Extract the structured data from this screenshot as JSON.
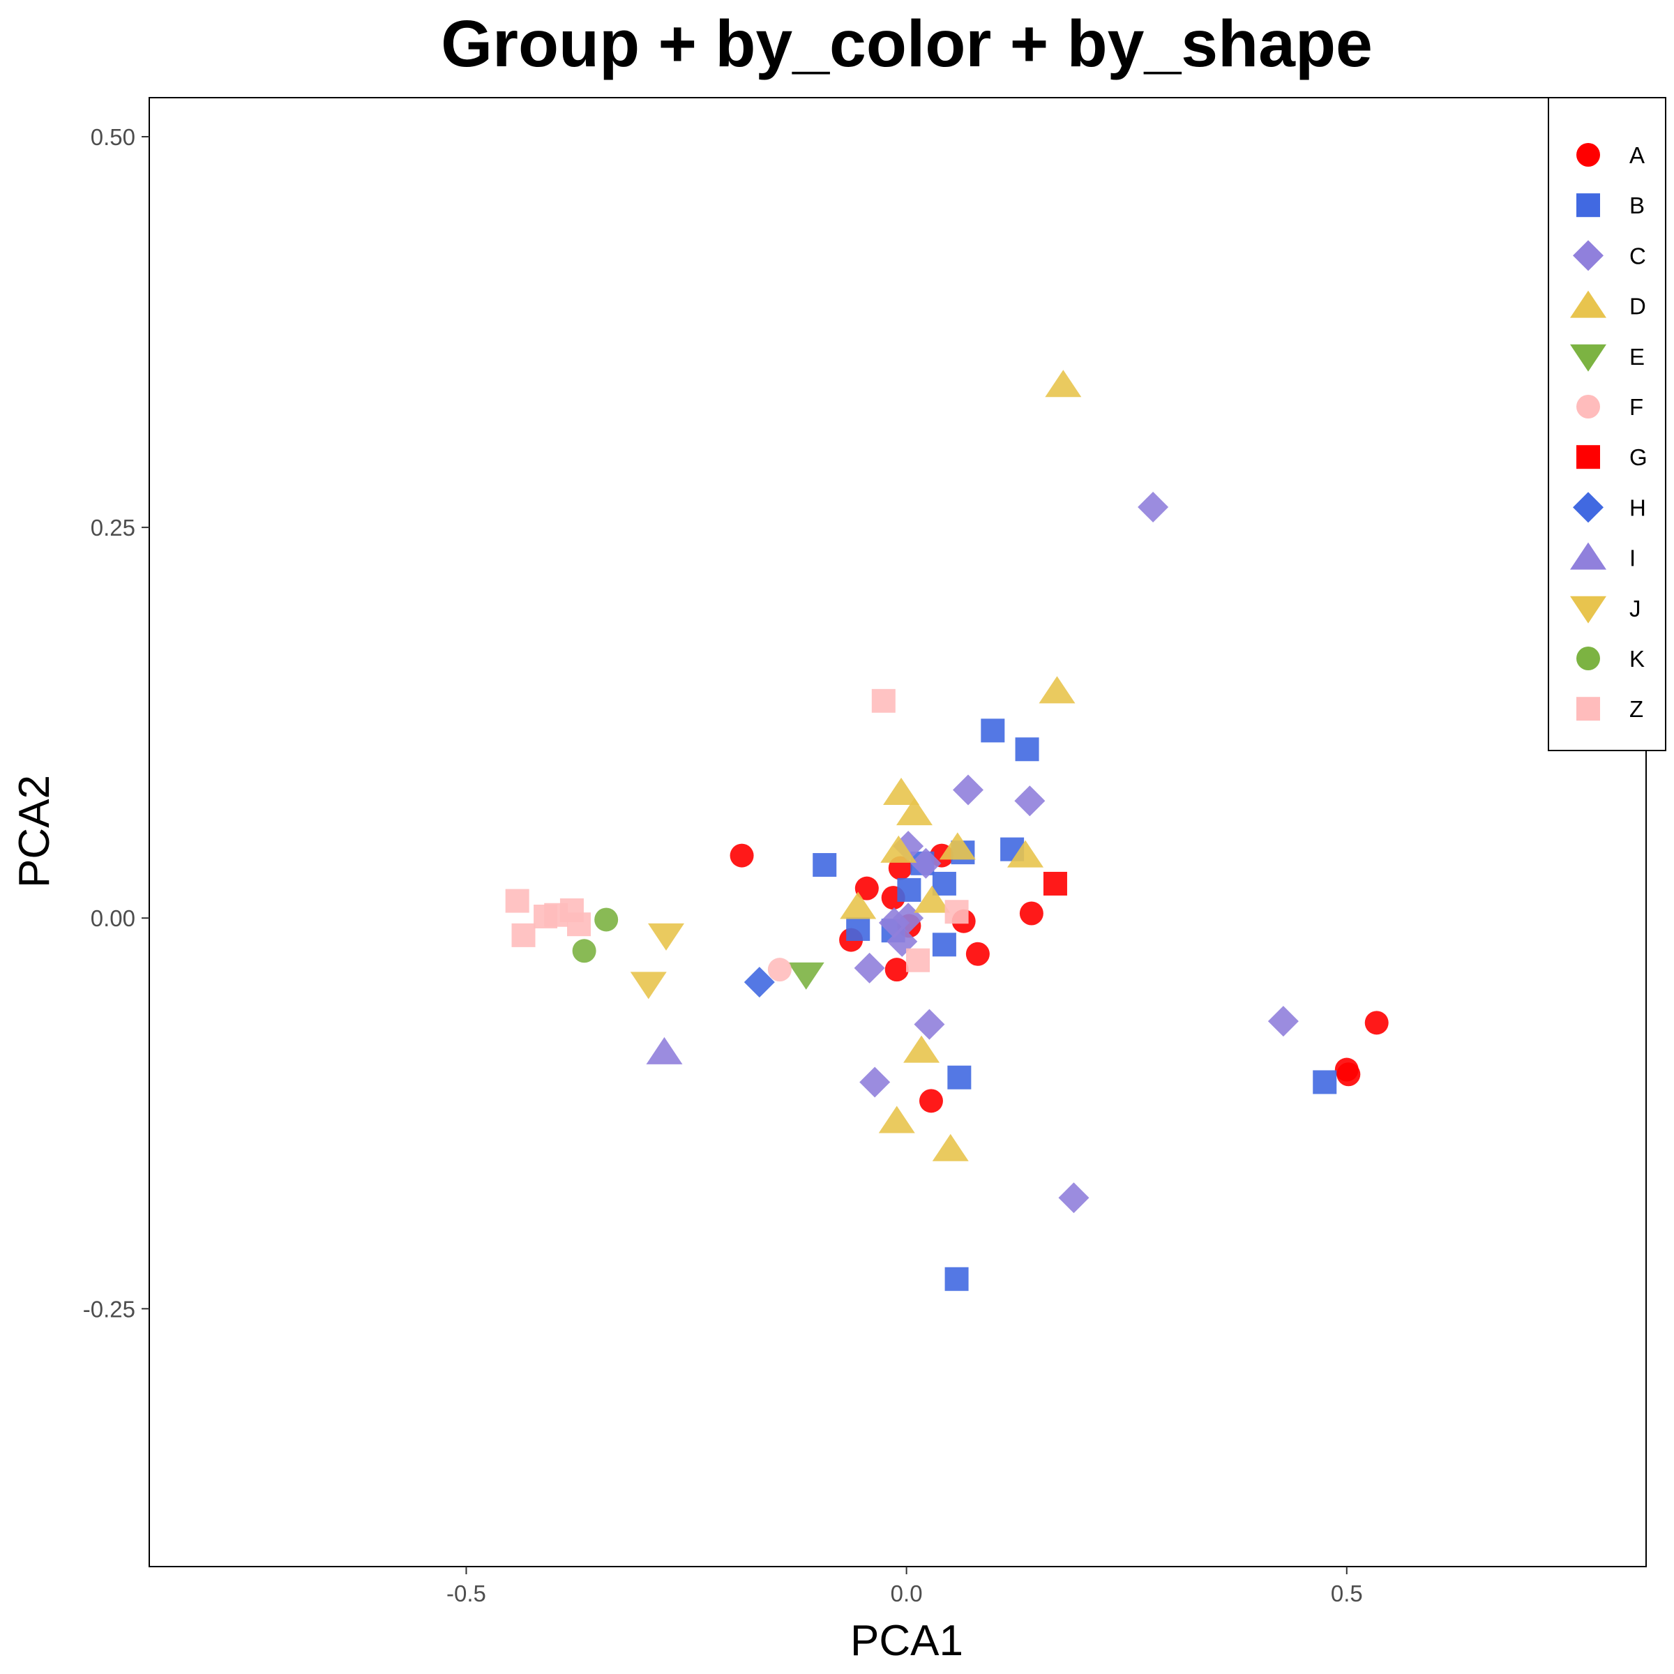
{
  "chart_data": {
    "type": "scatter",
    "title": "Group + by_color + by_shape",
    "xlabel": "PCA1",
    "ylabel": "PCA2",
    "xlim": [
      -0.86,
      0.84
    ],
    "ylim": [
      -0.415,
      0.525
    ],
    "x_ticks": [
      {
        "value": -0.5,
        "label": "-0.5"
      },
      {
        "value": 0.0,
        "label": "0.0"
      },
      {
        "value": 0.5,
        "label": "0.5"
      }
    ],
    "y_ticks": [
      {
        "value": 0.5,
        "label": "0.50"
      },
      {
        "value": 0.25,
        "label": "0.25"
      },
      {
        "value": 0.0,
        "label": "0.00"
      },
      {
        "value": -0.25,
        "label": "-0.25"
      }
    ],
    "grid": false,
    "legend_position": "top-right",
    "series": [
      {
        "name": "A",
        "color": "#ff0000",
        "shape": "circle",
        "points": [
          [
            -0.187,
            0.04
          ],
          [
            -0.045,
            0.019
          ],
          [
            -0.063,
            -0.014
          ],
          [
            -0.015,
            0.013
          ],
          [
            -0.007,
            0.032
          ],
          [
            0.003,
            -0.005
          ],
          [
            0.04,
            0.04
          ],
          [
            0.065,
            -0.002
          ],
          [
            0.081,
            -0.023
          ],
          [
            -0.011,
            -0.033
          ],
          [
            0.028,
            -0.117
          ],
          [
            0.142,
            0.003
          ],
          [
            0.5,
            -0.097
          ],
          [
            0.502,
            -0.1
          ],
          [
            0.534,
            -0.067
          ]
        ]
      },
      {
        "name": "B",
        "color": "#4169e1",
        "shape": "square",
        "points": [
          [
            -0.093,
            0.034
          ],
          [
            -0.055,
            -0.007
          ],
          [
            -0.015,
            -0.008
          ],
          [
            0.003,
            0.018
          ],
          [
            0.018,
            0.035
          ],
          [
            0.043,
            0.022
          ],
          [
            0.064,
            0.042
          ],
          [
            0.098,
            0.12
          ],
          [
            0.137,
            0.108
          ],
          [
            0.12,
            0.044
          ],
          [
            0.043,
            -0.017
          ],
          [
            0.06,
            -0.102
          ],
          [
            0.057,
            -0.231
          ],
          [
            0.475,
            -0.105
          ]
        ]
      },
      {
        "name": "C",
        "color": "#9080dc",
        "shape": "diamond",
        "points": [
          [
            0.002,
            0.046
          ],
          [
            0.022,
            0.035
          ],
          [
            0.07,
            0.082
          ],
          [
            0.14,
            0.075
          ],
          [
            -0.014,
            -0.003
          ],
          [
            0.002,
            0.0
          ],
          [
            -0.005,
            -0.015
          ],
          [
            -0.042,
            -0.032
          ],
          [
            0.026,
            -0.068
          ],
          [
            -0.036,
            -0.105
          ],
          [
            0.19,
            -0.179
          ],
          [
            0.28,
            0.263
          ],
          [
            0.428,
            -0.066
          ]
        ]
      },
      {
        "name": "D",
        "color": "#e8c44e",
        "shape": "triangle-up",
        "points": [
          [
            -0.006,
            0.08
          ],
          [
            0.009,
            0.067
          ],
          [
            -0.009,
            0.043
          ],
          [
            0.058,
            0.045
          ],
          [
            0.135,
            0.04
          ],
          [
            -0.055,
            0.007
          ],
          [
            0.029,
            0.011
          ],
          [
            0.017,
            -0.085
          ],
          [
            -0.011,
            -0.13
          ],
          [
            0.05,
            -0.148
          ],
          [
            0.171,
            0.145
          ],
          [
            0.178,
            0.341
          ]
        ]
      },
      {
        "name": "E",
        "color": "#7cb342",
        "shape": "triangle-down",
        "points": [
          [
            -0.114,
            -0.036
          ]
        ]
      },
      {
        "name": "F",
        "color": "#ffbcbc",
        "shape": "circle",
        "points": [
          [
            -0.144,
            -0.033
          ]
        ]
      },
      {
        "name": "G",
        "color": "#ff0000",
        "shape": "square",
        "points": [
          [
            0.169,
            0.022
          ]
        ]
      },
      {
        "name": "H",
        "color": "#4169e1",
        "shape": "diamond",
        "points": [
          [
            -0.167,
            -0.041
          ]
        ]
      },
      {
        "name": "I",
        "color": "#9080dc",
        "shape": "triangle-up",
        "points": [
          [
            -0.275,
            -0.086
          ]
        ]
      },
      {
        "name": "J",
        "color": "#e8c44e",
        "shape": "triangle-down",
        "points": [
          [
            -0.273,
            -0.011
          ],
          [
            -0.293,
            -0.042
          ]
        ]
      },
      {
        "name": "K",
        "color": "#7cb342",
        "shape": "circle",
        "points": [
          [
            -0.341,
            -0.001
          ],
          [
            -0.366,
            -0.021
          ]
        ]
      },
      {
        "name": "Z",
        "color": "#ffbcbc",
        "shape": "square",
        "points": [
          [
            -0.442,
            0.011
          ],
          [
            -0.435,
            -0.011
          ],
          [
            -0.41,
            0.001
          ],
          [
            -0.398,
            0.002
          ],
          [
            -0.38,
            0.005
          ],
          [
            -0.372,
            -0.004
          ],
          [
            -0.026,
            0.139
          ],
          [
            0.013,
            -0.027
          ],
          [
            0.057,
            0.004
          ]
        ]
      }
    ]
  }
}
